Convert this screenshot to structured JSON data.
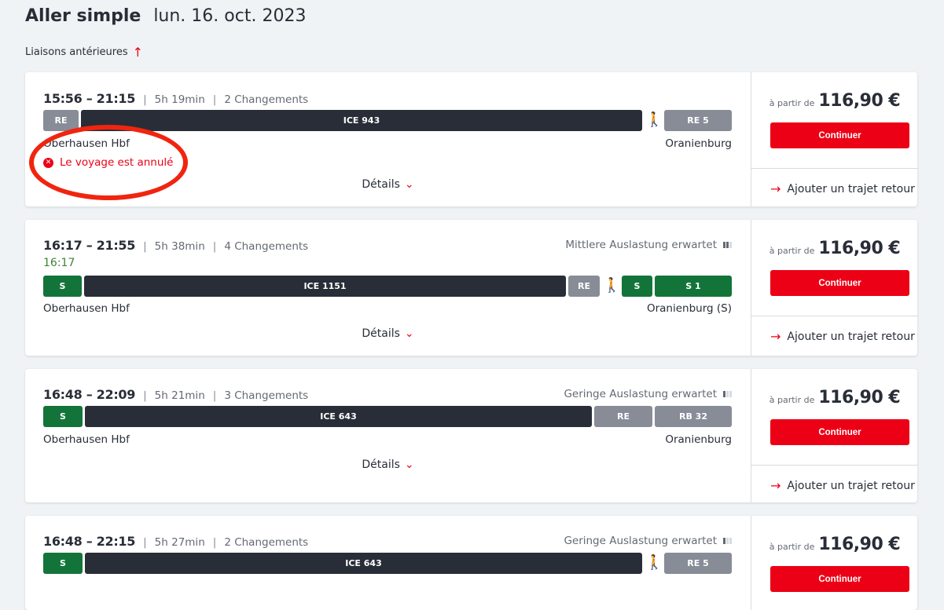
{
  "header": {
    "title": "Aller simple",
    "date": "lun. 16. oct. 2023",
    "earlier": "Liaisons antérieures"
  },
  "common": {
    "from_label": "à partir de",
    "continue": "Continuer",
    "return": "Ajouter un trajet retour",
    "details": "Détails"
  },
  "connections": [
    {
      "time": "15:56 – 21:15",
      "duration": "5h 19min",
      "changes": "2 Changements",
      "from": "Oberhausen Hbf",
      "to": "Oranienburg",
      "status": "Le voyage est annulé",
      "price": "116,90 €",
      "segments": [
        "RE",
        "ICE 943",
        "RE 5"
      ]
    },
    {
      "time": "16:17 – 21:55",
      "duration": "5h 38min",
      "changes": "4 Changements",
      "realtime": "16:17",
      "load": "Mittlere Auslastung erwartet",
      "load_level": 2,
      "from": "Oberhausen Hbf",
      "to": "Oranienburg (S)",
      "price": "116,90 €",
      "segments": [
        "S",
        "ICE 1151",
        "RE",
        "S",
        "S 1"
      ]
    },
    {
      "time": "16:48 – 22:09",
      "duration": "5h 21min",
      "changes": "3 Changements",
      "load": "Geringe Auslastung erwartet",
      "load_level": 1,
      "from": "Oberhausen Hbf",
      "to": "Oranienburg",
      "price": "116,90 €",
      "segments": [
        "S",
        "ICE 643",
        "RE",
        "RB 32"
      ]
    },
    {
      "time": "16:48 – 22:15",
      "duration": "5h 27min",
      "changes": "2 Changements",
      "load": "Geringe Auslastung erwartet",
      "load_level": 1,
      "price": "116,90 €",
      "segments": [
        "S",
        "ICE 643",
        "RE 5"
      ]
    }
  ],
  "colors": {
    "accent": "#ec0016",
    "regional": "#878c96",
    "longdistance": "#282d37",
    "sbahn": "#13743a",
    "annotation": "#f0250f"
  }
}
